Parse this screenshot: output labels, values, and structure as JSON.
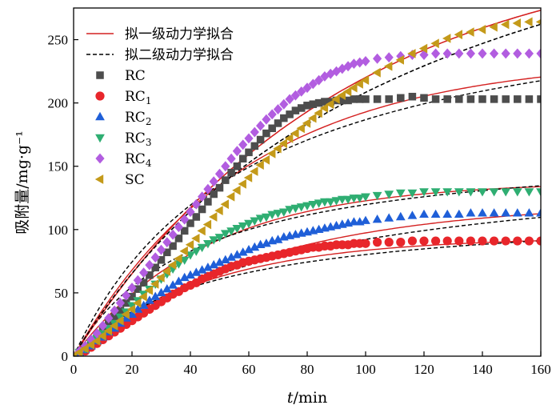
{
  "chart_data": {
    "type": "scatter",
    "xlabel_italic": "t",
    "xlabel_rest": "/min",
    "ylabel": "吸附量/mg·g⁻¹",
    "xlim": [
      0,
      160
    ],
    "ylim": [
      0,
      275
    ],
    "x_ticks": [
      0,
      20,
      40,
      60,
      80,
      100,
      120,
      140,
      160
    ],
    "y_ticks": [
      0,
      50,
      100,
      150,
      200,
      250
    ],
    "grid": false,
    "legend_position": "top-left",
    "fit_legend": [
      {
        "label": "拟一级动力学拟合",
        "color": "#d42020",
        "dash": "solid"
      },
      {
        "label": "拟二级动力学拟合",
        "color": "#000000",
        "dash": "dashed"
      }
    ],
    "x": [
      0,
      2,
      4,
      6,
      8,
      10,
      12,
      14,
      16,
      18,
      20,
      22,
      24,
      26,
      28,
      30,
      32,
      34,
      36,
      38,
      40,
      42,
      44,
      46,
      48,
      50,
      52,
      54,
      56,
      58,
      60,
      62,
      64,
      66,
      68,
      70,
      72,
      74,
      76,
      78,
      80,
      82,
      84,
      86,
      88,
      90,
      92,
      94,
      96,
      98,
      100,
      104,
      108,
      112,
      116,
      120,
      124,
      128,
      132,
      136,
      140,
      144,
      148,
      152,
      156,
      160
    ],
    "series": [
      {
        "name": "RC",
        "name_sub": "",
        "marker": "square",
        "color": "#4d4d4d",
        "values": [
          0,
          3,
          7,
          11,
          16,
          21,
          26,
          31,
          36,
          42,
          47,
          53,
          58,
          64,
          70,
          76,
          82,
          87,
          93,
          99,
          105,
          110,
          116,
          122,
          128,
          133,
          139,
          145,
          150,
          156,
          161,
          166,
          171,
          176,
          180,
          184,
          188,
          191,
          194,
          196,
          198,
          199,
          200,
          201,
          201,
          202,
          202,
          202,
          203,
          203,
          203,
          203,
          203,
          204,
          205,
          204,
          203,
          203,
          203,
          203,
          203,
          203,
          203,
          203,
          203,
          203
        ],
        "pfo": {
          "qe": 236,
          "k": 0.017
        },
        "pso": {
          "qe": 300,
          "k": 5.5e-05
        }
      },
      {
        "name": "RC",
        "name_sub": "1",
        "marker": "circle",
        "color": "#e8262b",
        "values": [
          0,
          2,
          4,
          7,
          10,
          13,
          16,
          19,
          22,
          25,
          28,
          31,
          34,
          37,
          40,
          43,
          46,
          49,
          51,
          54,
          56,
          58,
          61,
          63,
          65,
          67,
          69,
          71,
          72,
          74,
          75,
          76,
          77,
          78,
          79,
          80,
          81,
          82,
          83,
          84,
          85,
          86,
          86,
          87,
          87,
          88,
          88,
          88,
          89,
          89,
          89,
          90,
          90,
          90,
          91,
          91,
          91,
          91,
          91,
          91,
          91,
          91,
          91,
          91,
          91,
          91
        ],
        "pfo": {
          "qe": 94,
          "k": 0.022
        },
        "pso": {
          "qe": 118,
          "k": 0.00018
        }
      },
      {
        "name": "RC",
        "name_sub": "2",
        "marker": "triangle-up",
        "color": "#1f5fd8",
        "values": [
          0,
          3,
          5,
          8,
          12,
          15,
          19,
          22,
          26,
          30,
          33,
          37,
          40,
          44,
          47,
          50,
          53,
          56,
          59,
          62,
          64,
          66,
          68,
          70,
          72,
          74,
          76,
          78,
          80,
          82,
          84,
          86,
          88,
          89,
          91,
          92,
          94,
          95,
          96,
          97,
          98,
          99,
          100,
          101,
          102,
          103,
          104,
          105,
          106,
          106,
          107,
          108,
          109,
          110,
          111,
          112,
          112,
          112,
          112,
          113,
          113,
          113,
          113,
          113,
          113,
          113
        ],
        "pfo": {
          "qe": 122,
          "k": 0.016
        },
        "pso": {
          "qe": 160,
          "k": 8.5e-05
        }
      },
      {
        "name": "RC",
        "name_sub": "3",
        "marker": "triangle-down",
        "color": "#2fae72",
        "values": [
          0,
          3,
          6,
          10,
          14,
          18,
          22,
          26,
          31,
          35,
          40,
          44,
          49,
          53,
          57,
          61,
          65,
          69,
          73,
          76,
          80,
          83,
          86,
          89,
          92,
          94,
          97,
          99,
          101,
          103,
          105,
          107,
          109,
          110,
          112,
          113,
          114,
          116,
          117,
          118,
          119,
          120,
          121,
          122,
          122,
          123,
          124,
          124,
          125,
          125,
          126,
          127,
          128,
          129,
          129,
          130,
          130,
          130,
          130,
          130,
          130,
          130,
          130,
          130,
          130,
          130
        ],
        "pfo": {
          "qe": 138,
          "k": 0.022
        },
        "pso": {
          "qe": 170,
          "k": 0.00014
        }
      },
      {
        "name": "RC",
        "name_sub": "4",
        "marker": "diamond",
        "color": "#b25de0",
        "values": [
          0,
          4,
          8,
          13,
          18,
          24,
          30,
          36,
          42,
          48,
          54,
          60,
          66,
          72,
          78,
          84,
          90,
          96,
          102,
          108,
          114,
          120,
          126,
          132,
          138,
          144,
          150,
          156,
          162,
          167,
          172,
          177,
          182,
          187,
          191,
          195,
          199,
          203,
          206,
          209,
          212,
          215,
          218,
          221,
          223,
          225,
          227,
          229,
          231,
          232,
          233,
          235,
          236,
          237,
          238,
          238,
          239,
          239,
          239,
          239,
          239,
          239,
          239,
          239,
          239,
          239
        ],
        "pfo": {
          "qe": 330,
          "k": 0.011
        },
        "pso": {
          "qe": 460,
          "k": 1.8e-05
        }
      },
      {
        "name": "SC",
        "name_sub": "",
        "marker": "triangle-left",
        "color": "#c49a1a",
        "values": [
          0,
          3,
          6,
          9,
          12,
          16,
          20,
          24,
          28,
          33,
          37,
          42,
          47,
          52,
          57,
          62,
          67,
          72,
          77,
          83,
          88,
          93,
          99,
          104,
          110,
          115,
          120,
          126,
          131,
          136,
          141,
          146,
          151,
          155,
          160,
          164,
          168,
          172,
          176,
          180,
          184,
          188,
          192,
          196,
          199,
          203,
          206,
          209,
          212,
          215,
          218,
          224,
          229,
          234,
          239,
          243,
          247,
          251,
          254,
          256,
          258,
          260,
          262,
          263,
          264,
          264
        ],
        "pfo": {
          "qe": 330,
          "k": 0.011
        },
        "pso": {
          "qe": 460,
          "k": 1.8e-05
        }
      }
    ]
  }
}
